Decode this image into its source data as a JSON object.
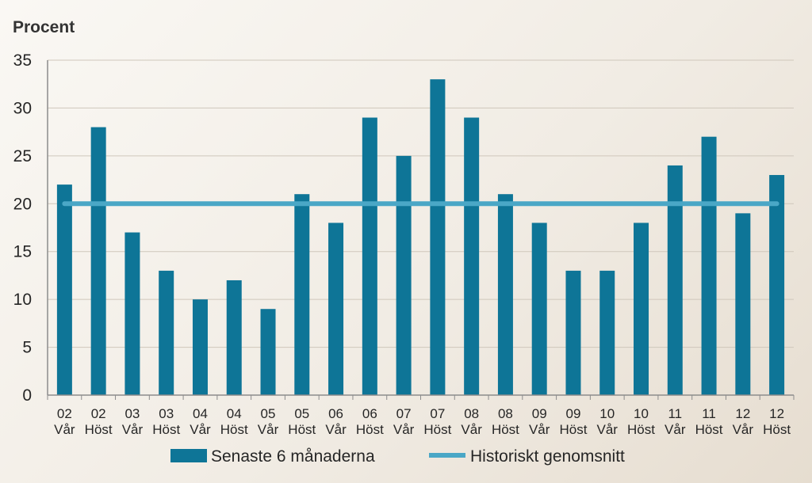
{
  "chart_data": {
    "type": "bar",
    "ylabel": "Procent",
    "ylim": [
      0,
      35
    ],
    "yticks": [
      0,
      5,
      10,
      15,
      20,
      25,
      30,
      35
    ],
    "grid": true,
    "legend_position": "bottom",
    "categories": [
      [
        "02",
        "Vår"
      ],
      [
        "02",
        "Höst"
      ],
      [
        "03",
        "Vår"
      ],
      [
        "03",
        "Höst"
      ],
      [
        "04",
        "Vår"
      ],
      [
        "04",
        "Höst"
      ],
      [
        "05",
        "Vår"
      ],
      [
        "05",
        "Höst"
      ],
      [
        "06",
        "Vår"
      ],
      [
        "06",
        "Höst"
      ],
      [
        "07",
        "Vår"
      ],
      [
        "07",
        "Höst"
      ],
      [
        "08",
        "Vår"
      ],
      [
        "08",
        "Höst"
      ],
      [
        "09",
        "Vår"
      ],
      [
        "09",
        "Höst"
      ],
      [
        "10",
        "Vår"
      ],
      [
        "10",
        "Höst"
      ],
      [
        "11",
        "Vår"
      ],
      [
        "11",
        "Höst"
      ],
      [
        "12",
        "Vår"
      ],
      [
        "12",
        "Höst"
      ]
    ],
    "series": [
      {
        "name": "Senaste 6 månaderna",
        "type": "bar",
        "color": "#0e7597",
        "values": [
          22,
          28,
          17,
          13,
          10,
          12,
          9,
          21,
          18,
          29,
          25,
          33,
          29,
          21,
          18,
          13,
          13,
          18,
          24,
          27,
          19,
          23
        ]
      },
      {
        "name": "Historiskt genomsnitt",
        "type": "line",
        "color": "#4aa7c6",
        "value": 20
      }
    ]
  }
}
